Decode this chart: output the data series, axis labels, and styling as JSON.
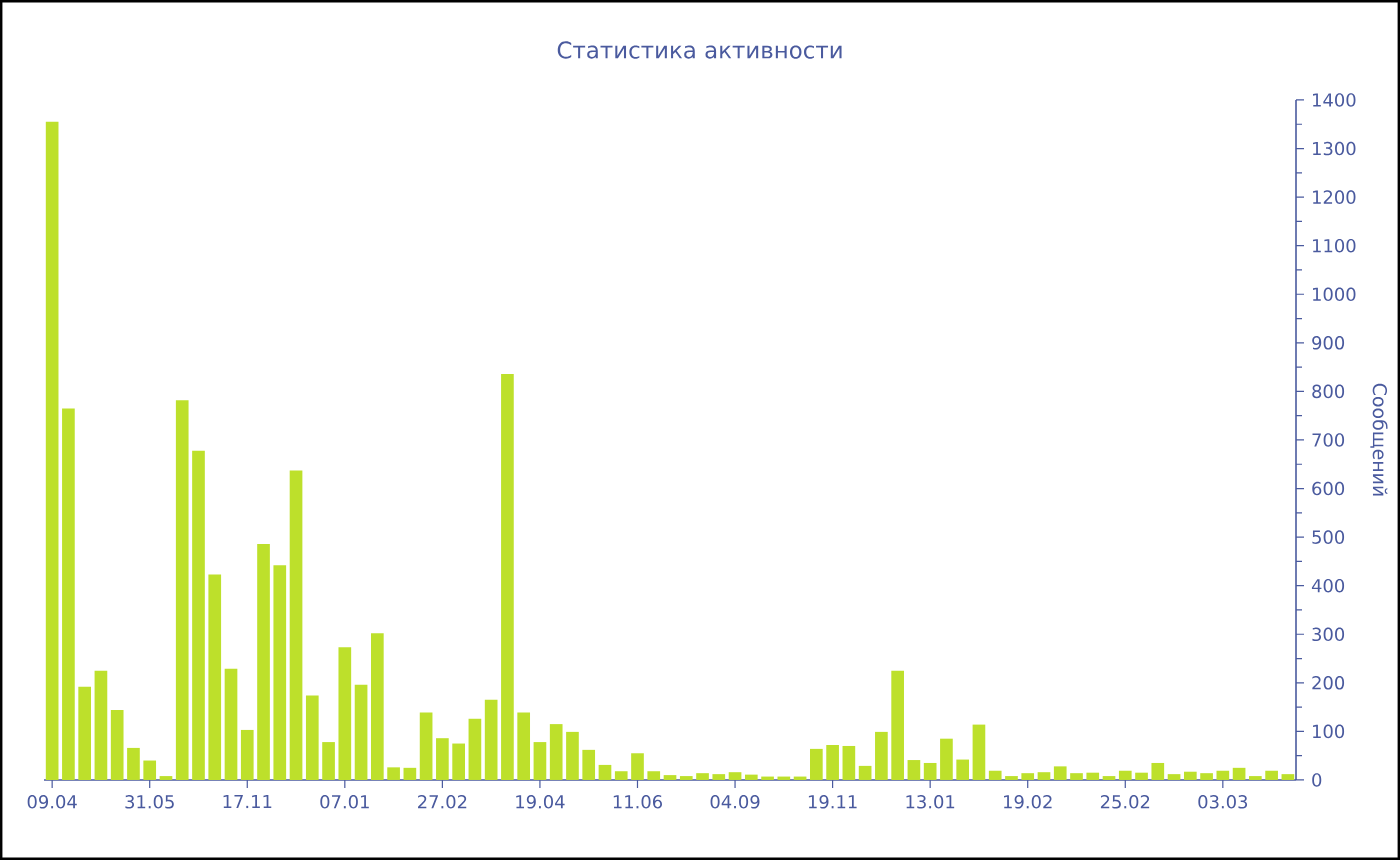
{
  "chart_data": {
    "type": "bar",
    "title": "Статистика активности",
    "ylabel": "Сообщений",
    "categories": [
      "09.04",
      null,
      null,
      null,
      null,
      null,
      "31.05",
      null,
      null,
      null,
      null,
      null,
      "17.11",
      null,
      null,
      null,
      null,
      null,
      "07.01",
      null,
      null,
      null,
      null,
      null,
      "27.02",
      null,
      null,
      null,
      null,
      null,
      "19.04",
      null,
      null,
      null,
      null,
      null,
      "11.06",
      null,
      null,
      null,
      null,
      null,
      "04.09",
      null,
      null,
      null,
      null,
      null,
      "19.11",
      null,
      null,
      null,
      null,
      null,
      "13.01",
      null,
      null,
      null,
      null,
      null,
      "19.02",
      null,
      null,
      null,
      null,
      null,
      "25.02",
      null,
      null,
      null,
      null,
      null,
      "03.03",
      null,
      null,
      null,
      null
    ],
    "values": [
      1355,
      765,
      192,
      225,
      144,
      66,
      40,
      8,
      782,
      678,
      423,
      229,
      103,
      486,
      442,
      637,
      174,
      78,
      273,
      196,
      302,
      26,
      25,
      139,
      86,
      75,
      126,
      165,
      836,
      139,
      78,
      115,
      99,
      62,
      31,
      18,
      55,
      18,
      10,
      8,
      14,
      12,
      16,
      11,
      7,
      7,
      7,
      64,
      72,
      70,
      29,
      99,
      225,
      41,
      35,
      85,
      42,
      114,
      19,
      8,
      14,
      16,
      28,
      14,
      15,
      8,
      19,
      15,
      35,
      12,
      17,
      14,
      19,
      25,
      8,
      19,
      12
    ],
    "color": "#bde02b",
    "ylim": [
      0,
      1400
    ],
    "yticks": [
      0,
      100,
      200,
      300,
      400,
      500,
      600,
      700,
      800,
      900,
      1000,
      1100,
      1200,
      1300,
      1400
    ]
  }
}
